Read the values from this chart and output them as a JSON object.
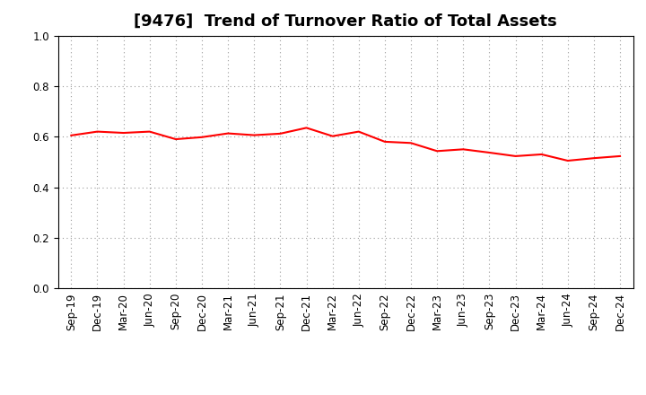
{
  "title": "[9476]  Trend of Turnover Ratio of Total Assets",
  "x_labels": [
    "Sep-19",
    "Dec-19",
    "Mar-20",
    "Jun-20",
    "Sep-20",
    "Dec-20",
    "Mar-21",
    "Jun-21",
    "Sep-21",
    "Dec-21",
    "Mar-22",
    "Jun-22",
    "Sep-22",
    "Dec-22",
    "Mar-23",
    "Jun-23",
    "Sep-23",
    "Dec-23",
    "Mar-24",
    "Jun-24",
    "Sep-24",
    "Dec-24"
  ],
  "values": [
    0.605,
    0.62,
    0.615,
    0.62,
    0.59,
    0.598,
    0.613,
    0.606,
    0.612,
    0.635,
    0.602,
    0.62,
    0.58,
    0.575,
    0.543,
    0.55,
    0.537,
    0.523,
    0.53,
    0.505,
    0.515,
    0.523
  ],
  "line_color": "#FF0000",
  "line_width": 1.5,
  "ylim": [
    0.0,
    1.0
  ],
  "yticks": [
    0.0,
    0.2,
    0.4,
    0.6,
    0.8,
    1.0
  ],
  "grid_color": "#999999",
  "bg_color": "#ffffff",
  "title_fontsize": 13,
  "tick_fontsize": 8.5
}
